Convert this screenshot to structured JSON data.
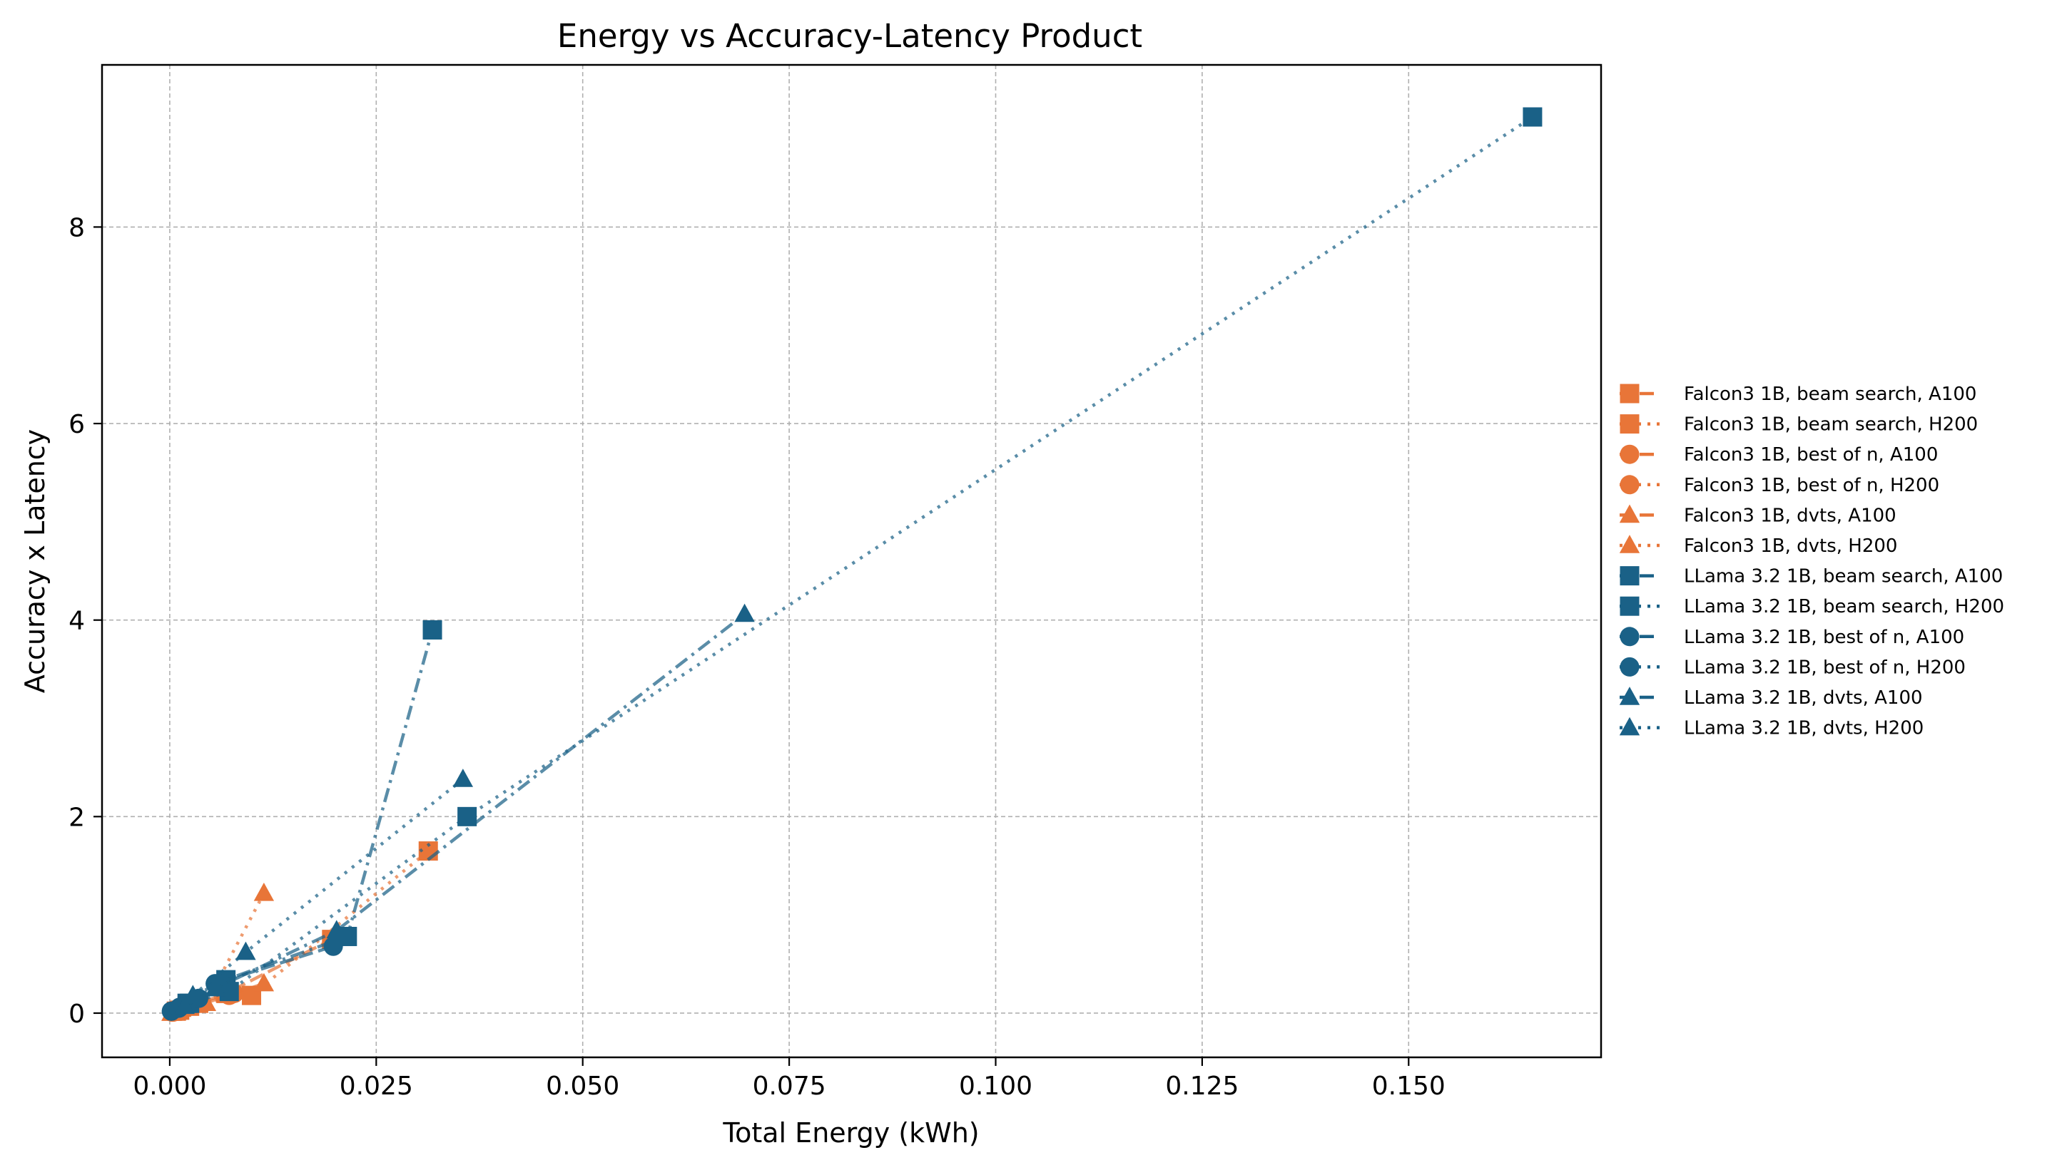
{
  "chart_data": {
    "type": "line",
    "title": "Energy vs Accuracy-Latency Product",
    "xlabel": "Total Energy (kWh)",
    "ylabel": "Accuracy x Latency",
    "xlim": [
      -0.0082,
      0.1733
    ],
    "ylim": [
      -0.45,
      9.65
    ],
    "x_ticks": [
      0.0,
      0.025,
      0.05,
      0.075,
      0.1,
      0.125,
      0.15
    ],
    "x_tick_labels": [
      "0.000",
      "0.025",
      "0.050",
      "0.075",
      "0.100",
      "0.125",
      "0.150"
    ],
    "y_ticks": [
      0,
      2,
      4,
      6,
      8
    ],
    "y_tick_labels": [
      "0",
      "2",
      "4",
      "6",
      "8"
    ],
    "grid": true,
    "legend_position": "right, outside plot",
    "colors": {
      "falcon": "#e87538",
      "llama": "#1a6187"
    },
    "series": [
      {
        "name": "Falcon3 1B, beam search, A100",
        "model": "falcon",
        "marker": "square",
        "linestyle": "dash",
        "x": [
          0.0008,
          0.0024,
          0.0068,
          0.0196
        ],
        "y": [
          0.02,
          0.07,
          0.2,
          0.75
        ]
      },
      {
        "name": "Falcon3 1B, beam search, H200",
        "model": "falcon",
        "marker": "square",
        "linestyle": "dot",
        "x": [
          0.0012,
          0.0035,
          0.0099,
          0.0313
        ],
        "y": [
          0.03,
          0.1,
          0.18,
          1.65
        ]
      },
      {
        "name": "Falcon3 1B, best of n, A100",
        "model": "falcon",
        "marker": "circle",
        "linestyle": "dash",
        "x": [
          0.0003,
          0.001,
          0.0028,
          0.0078
        ],
        "y": [
          0.01,
          0.04,
          0.1,
          0.2
        ]
      },
      {
        "name": "Falcon3 1B, best of n, H200",
        "model": "falcon",
        "marker": "circle",
        "linestyle": "dot",
        "x": [
          0.0004,
          0.0012,
          0.0035,
          0.0072
        ],
        "y": [
          0.01,
          0.04,
          0.1,
          0.18
        ]
      },
      {
        "name": "Falcon3 1B, dvts, A100",
        "model": "falcon",
        "marker": "triangle",
        "linestyle": "dash",
        "x": [
          0.0002,
          0.0014,
          0.0042,
          0.0114
        ],
        "y": [
          0.0,
          0.04,
          0.1,
          0.3
        ]
      },
      {
        "name": "Falcon3 1B, dvts, H200",
        "model": "falcon",
        "marker": "triangle",
        "linestyle": "dot",
        "x": [
          0.0003,
          0.0014,
          0.0044,
          0.0114
        ],
        "y": [
          0.0,
          0.05,
          0.1,
          1.22
        ]
      },
      {
        "name": "LLama 3.2 1B, beam search, A100",
        "model": "llama",
        "marker": "square",
        "linestyle": "dashdot",
        "x": [
          0.0021,
          0.0068,
          0.0215,
          0.0318
        ],
        "y": [
          0.1,
          0.34,
          0.78,
          3.9
        ]
      },
      {
        "name": "LLama 3.2 1B, beam search, H200",
        "model": "llama",
        "marker": "square",
        "linestyle": "dot",
        "x": [
          0.0024,
          0.0072,
          0.036,
          0.165
        ],
        "y": [
          0.1,
          0.22,
          2.0,
          9.12
        ]
      },
      {
        "name": "LLama 3.2 1B, best of n, A100",
        "model": "llama",
        "marker": "circle",
        "linestyle": "dash",
        "x": [
          0.0002,
          0.0012,
          0.0055,
          0.0198
        ],
        "y": [
          0.02,
          0.06,
          0.3,
          0.68
        ]
      },
      {
        "name": "LLama 3.2 1B, best of n, H200",
        "model": "llama",
        "marker": "circle",
        "linestyle": "dot",
        "x": [
          0.0002,
          0.0011,
          0.0035,
          0.0062
        ],
        "y": [
          0.02,
          0.05,
          0.15,
          0.3
        ]
      },
      {
        "name": "LLama 3.2 1B, dvts, A100",
        "model": "llama",
        "marker": "triangle",
        "linestyle": "dashdot",
        "x": [
          0.0018,
          0.0055,
          0.0202,
          0.0696
        ],
        "y": [
          0.07,
          0.25,
          0.84,
          4.06
        ]
      },
      {
        "name": "LLama 3.2 1B, dvts, H200",
        "model": "llama",
        "marker": "triangle",
        "linestyle": "dot",
        "x": [
          0.0028,
          0.0092,
          0.0355
        ],
        "y": [
          0.18,
          0.62,
          2.38
        ]
      }
    ]
  }
}
